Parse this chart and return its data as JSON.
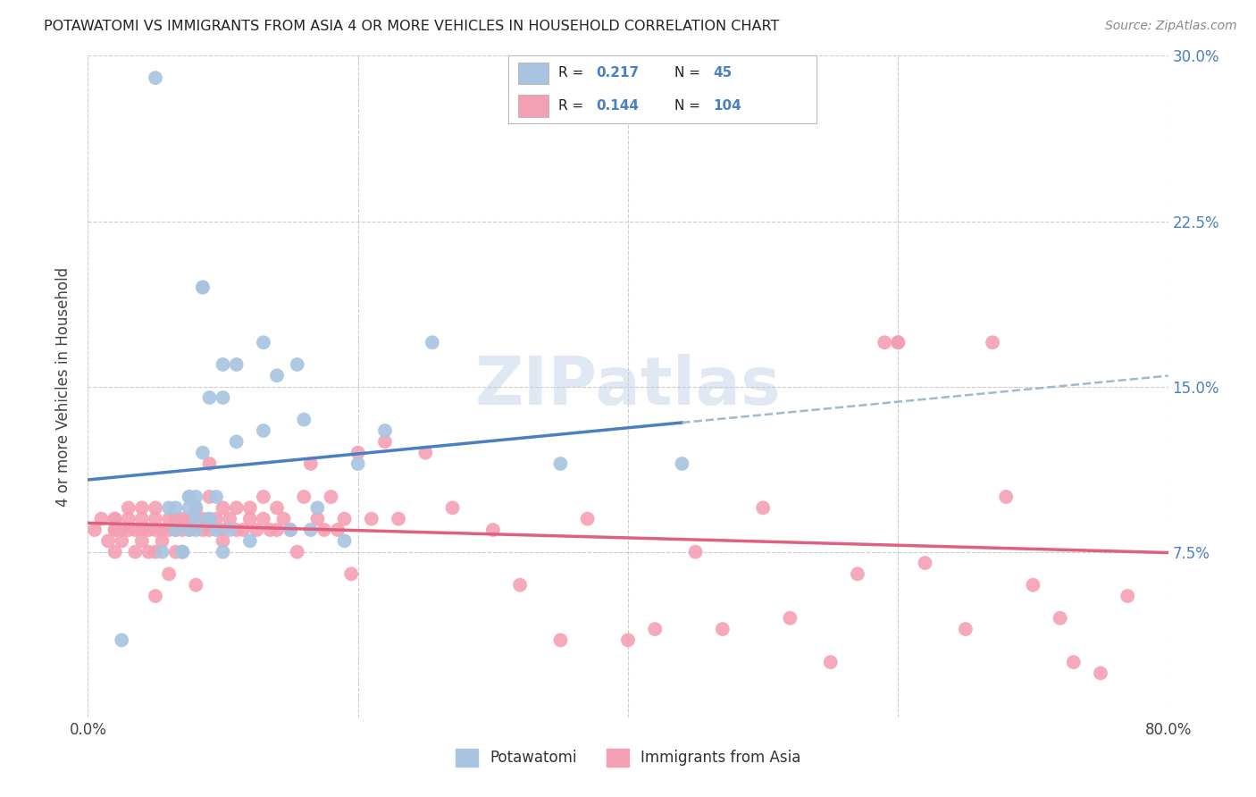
{
  "title": "POTAWATOMI VS IMMIGRANTS FROM ASIA 4 OR MORE VEHICLES IN HOUSEHOLD CORRELATION CHART",
  "source": "Source: ZipAtlas.com",
  "ylabel": "4 or more Vehicles in Household",
  "xmin": 0.0,
  "xmax": 0.8,
  "ymin": 0.0,
  "ymax": 0.3,
  "ytick_positions": [
    0.075,
    0.15,
    0.225,
    0.3
  ],
  "ytick_labels": [
    "7.5%",
    "15.0%",
    "22.5%",
    "30.0%"
  ],
  "xtick_positions": [
    0.0,
    0.2,
    0.4,
    0.6,
    0.8
  ],
  "xtick_labels": [
    "0.0%",
    "",
    "",
    "",
    "80.0%"
  ],
  "blue_R": 0.217,
  "blue_N": 45,
  "pink_R": 0.144,
  "pink_N": 104,
  "blue_color": "#a8c4e0",
  "pink_color": "#f4a0b4",
  "blue_line_color": "#4a7fc1",
  "pink_line_color": "#e06080",
  "dash_color": "#a0b8d0",
  "watermark_color": "#c8d8ea",
  "watermark": "ZIPatlas",
  "legend_label_blue": "Potawatomi",
  "legend_label_pink": "Immigrants from Asia",
  "blue_scatter_x": [
    0.025,
    0.05,
    0.055,
    0.06,
    0.065,
    0.065,
    0.07,
    0.07,
    0.075,
    0.075,
    0.075,
    0.075,
    0.08,
    0.08,
    0.08,
    0.08,
    0.085,
    0.085,
    0.085,
    0.09,
    0.09,
    0.09,
    0.095,
    0.095,
    0.1,
    0.1,
    0.1,
    0.105,
    0.11,
    0.11,
    0.12,
    0.13,
    0.13,
    0.14,
    0.15,
    0.155,
    0.16,
    0.165,
    0.17,
    0.19,
    0.2,
    0.22,
    0.255,
    0.35,
    0.44
  ],
  "blue_scatter_y": [
    0.035,
    0.29,
    0.075,
    0.095,
    0.095,
    0.085,
    0.075,
    0.075,
    0.095,
    0.1,
    0.085,
    0.1,
    0.09,
    0.085,
    0.1,
    0.095,
    0.12,
    0.195,
    0.195,
    0.09,
    0.09,
    0.145,
    0.085,
    0.1,
    0.145,
    0.16,
    0.075,
    0.085,
    0.125,
    0.16,
    0.08,
    0.13,
    0.17,
    0.155,
    0.085,
    0.16,
    0.135,
    0.085,
    0.095,
    0.08,
    0.115,
    0.13,
    0.17,
    0.115,
    0.115
  ],
  "pink_scatter_x": [
    0.005,
    0.01,
    0.015,
    0.02,
    0.02,
    0.02,
    0.02,
    0.02,
    0.025,
    0.025,
    0.03,
    0.03,
    0.03,
    0.035,
    0.035,
    0.04,
    0.04,
    0.04,
    0.04,
    0.04,
    0.045,
    0.045,
    0.05,
    0.05,
    0.05,
    0.05,
    0.05,
    0.055,
    0.055,
    0.06,
    0.06,
    0.06,
    0.065,
    0.065,
    0.065,
    0.07,
    0.07,
    0.07,
    0.075,
    0.075,
    0.08,
    0.08,
    0.085,
    0.085,
    0.09,
    0.09,
    0.09,
    0.095,
    0.1,
    0.1,
    0.1,
    0.105,
    0.11,
    0.11,
    0.115,
    0.12,
    0.12,
    0.125,
    0.13,
    0.13,
    0.135,
    0.14,
    0.14,
    0.145,
    0.15,
    0.155,
    0.16,
    0.165,
    0.17,
    0.175,
    0.18,
    0.185,
    0.19,
    0.195,
    0.2,
    0.21,
    0.22,
    0.23,
    0.25,
    0.27,
    0.3,
    0.32,
    0.35,
    0.37,
    0.4,
    0.42,
    0.45,
    0.47,
    0.5,
    0.52,
    0.55,
    0.57,
    0.6,
    0.62,
    0.65,
    0.67,
    0.68,
    0.7,
    0.72,
    0.73,
    0.75,
    0.77,
    0.59,
    0.6
  ],
  "pink_scatter_y": [
    0.085,
    0.09,
    0.08,
    0.075,
    0.085,
    0.09,
    0.09,
    0.085,
    0.08,
    0.085,
    0.09,
    0.085,
    0.095,
    0.075,
    0.085,
    0.08,
    0.085,
    0.09,
    0.095,
    0.085,
    0.075,
    0.085,
    0.09,
    0.095,
    0.085,
    0.055,
    0.075,
    0.08,
    0.085,
    0.09,
    0.085,
    0.065,
    0.075,
    0.085,
    0.09,
    0.085,
    0.09,
    0.075,
    0.085,
    0.09,
    0.095,
    0.06,
    0.085,
    0.09,
    0.085,
    0.1,
    0.115,
    0.09,
    0.085,
    0.095,
    0.08,
    0.09,
    0.085,
    0.095,
    0.085,
    0.09,
    0.095,
    0.085,
    0.09,
    0.1,
    0.085,
    0.085,
    0.095,
    0.09,
    0.085,
    0.075,
    0.1,
    0.115,
    0.09,
    0.085,
    0.1,
    0.085,
    0.09,
    0.065,
    0.12,
    0.09,
    0.125,
    0.09,
    0.12,
    0.095,
    0.085,
    0.06,
    0.035,
    0.09,
    0.035,
    0.04,
    0.075,
    0.04,
    0.095,
    0.045,
    0.025,
    0.065,
    0.17,
    0.07,
    0.04,
    0.17,
    0.1,
    0.06,
    0.045,
    0.025,
    0.02,
    0.055,
    0.17,
    0.17
  ]
}
